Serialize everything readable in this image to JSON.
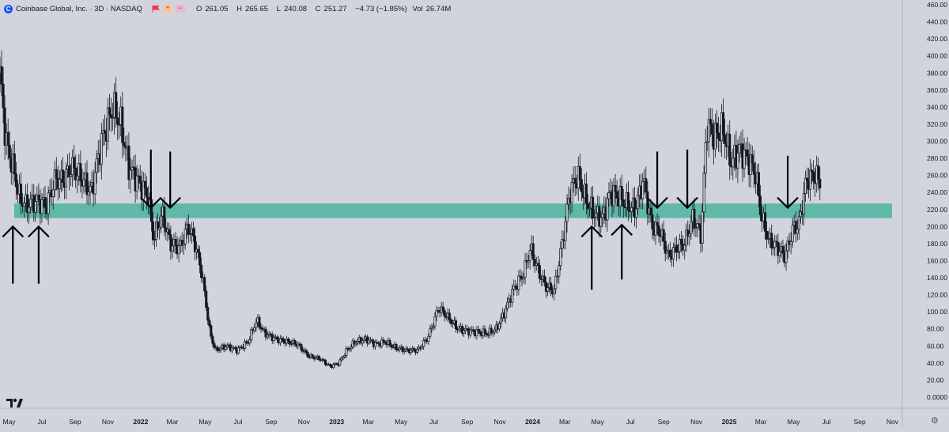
{
  "header": {
    "symbol_title": "Coinbase Global, Inc. · 3D · NASDAQ",
    "open_label": "O",
    "open": "261.05",
    "high_label": "H",
    "high": "265.65",
    "low_label": "L",
    "low": "240.08",
    "close_label": "C",
    "close": "251.27",
    "change": "−4.73 (−1.85%)",
    "vol_label": "Vol",
    "volume": "26.74M",
    "logo_letter": "C"
  },
  "colors": {
    "background": "#d1d4dc",
    "candle": "#131722",
    "support_band": "#5fb8a8",
    "arrows": "#000000",
    "axis_text": "#131722"
  },
  "chart_data": {
    "type": "candlestick",
    "y_axis": {
      "ylim": [
        0,
        460
      ],
      "ticks": [
        "460.00",
        "440.00",
        "420.00",
        "400.00",
        "380.00",
        "360.00",
        "340.00",
        "320.00",
        "300.00",
        "280.00",
        "260.00",
        "240.00",
        "220.00",
        "200.00",
        "180.00",
        "160.00",
        "140.00",
        "120.00",
        "100.00",
        "80.00",
        "60.00",
        "40.00",
        "20.00",
        "0.0000"
      ]
    },
    "x_axis": {
      "start": "2021-04-14",
      "end": "2025-11-18",
      "ticks": [
        {
          "label": "May",
          "date": "2021-05-01"
        },
        {
          "label": "Jul",
          "date": "2021-07-01"
        },
        {
          "label": "Sep",
          "date": "2021-09-01"
        },
        {
          "label": "Nov",
          "date": "2021-11-01"
        },
        {
          "label": "2022",
          "date": "2022-01-01"
        },
        {
          "label": "Mar",
          "date": "2022-03-01"
        },
        {
          "label": "May",
          "date": "2022-05-01"
        },
        {
          "label": "Jul",
          "date": "2022-07-01"
        },
        {
          "label": "Sep",
          "date": "2022-09-01"
        },
        {
          "label": "Nov",
          "date": "2022-11-01"
        },
        {
          "label": "2023",
          "date": "2023-01-01"
        },
        {
          "label": "Mar",
          "date": "2023-03-01"
        },
        {
          "label": "May",
          "date": "2023-05-01"
        },
        {
          "label": "Jul",
          "date": "2023-07-01"
        },
        {
          "label": "Sep",
          "date": "2023-09-01"
        },
        {
          "label": "Nov",
          "date": "2023-11-01"
        },
        {
          "label": "2024",
          "date": "2024-01-01"
        },
        {
          "label": "Mar",
          "date": "2024-03-01"
        },
        {
          "label": "May",
          "date": "2024-05-01"
        },
        {
          "label": "Jul",
          "date": "2024-07-01"
        },
        {
          "label": "Sep",
          "date": "2024-09-01"
        },
        {
          "label": "Nov",
          "date": "2024-11-01"
        },
        {
          "label": "2025",
          "date": "2025-01-01"
        },
        {
          "label": "Mar",
          "date": "2025-03-01"
        },
        {
          "label": "May",
          "date": "2025-05-01"
        },
        {
          "label": "Jul",
          "date": "2025-07-01"
        },
        {
          "label": "Sep",
          "date": "2025-09-01"
        },
        {
          "label": "Nov",
          "date": "2025-11-01"
        }
      ]
    },
    "support_zone": {
      "low": 210,
      "high": 227
    },
    "price_path": [
      [
        "2021-04-14",
        380
      ],
      [
        "2021-04-25",
        300
      ],
      [
        "2021-05-10",
        265
      ],
      [
        "2021-05-20",
        235
      ],
      [
        "2021-06-01",
        225
      ],
      [
        "2021-06-20",
        230
      ],
      [
        "2021-07-10",
        225
      ],
      [
        "2021-07-25",
        255
      ],
      [
        "2021-08-10",
        255
      ],
      [
        "2021-08-25",
        270
      ],
      [
        "2021-09-15",
        255
      ],
      [
        "2021-10-01",
        240
      ],
      [
        "2021-10-20",
        300
      ],
      [
        "2021-11-10",
        340
      ],
      [
        "2021-11-25",
        320
      ],
      [
        "2021-12-10",
        270
      ],
      [
        "2021-12-25",
        255
      ],
      [
        "2022-01-15",
        235
      ],
      [
        "2022-01-25",
        185
      ],
      [
        "2022-02-10",
        215
      ],
      [
        "2022-02-25",
        180
      ],
      [
        "2022-03-15",
        175
      ],
      [
        "2022-03-30",
        200
      ],
      [
        "2022-04-10",
        185
      ],
      [
        "2022-04-25",
        145
      ],
      [
        "2022-05-10",
        75
      ],
      [
        "2022-05-20",
        55
      ],
      [
        "2022-06-10",
        60
      ],
      [
        "2022-06-30",
        55
      ],
      [
        "2022-07-20",
        65
      ],
      [
        "2022-08-05",
        90
      ],
      [
        "2022-08-20",
        75
      ],
      [
        "2022-09-10",
        68
      ],
      [
        "2022-10-01",
        65
      ],
      [
        "2022-10-20",
        62
      ],
      [
        "2022-11-10",
        48
      ],
      [
        "2022-12-01",
        45
      ],
      [
        "2022-12-20",
        36
      ],
      [
        "2023-01-05",
        40
      ],
      [
        "2023-01-20",
        55
      ],
      [
        "2023-02-05",
        65
      ],
      [
        "2023-02-25",
        68
      ],
      [
        "2023-03-15",
        62
      ],
      [
        "2023-04-01",
        65
      ],
      [
        "2023-04-20",
        58
      ],
      [
        "2023-05-10",
        55
      ],
      [
        "2023-06-01",
        55
      ],
      [
        "2023-06-20",
        70
      ],
      [
        "2023-07-10",
        105
      ],
      [
        "2023-07-25",
        95
      ],
      [
        "2023-08-15",
        80
      ],
      [
        "2023-09-01",
        78
      ],
      [
        "2023-09-20",
        76
      ],
      [
        "2023-10-10",
        75
      ],
      [
        "2023-10-25",
        80
      ],
      [
        "2023-11-10",
        100
      ],
      [
        "2023-11-25",
        125
      ],
      [
        "2023-12-15",
        145
      ],
      [
        "2023-12-28",
        175
      ],
      [
        "2024-01-10",
        150
      ],
      [
        "2024-01-25",
        130
      ],
      [
        "2024-02-10",
        125
      ],
      [
        "2024-02-25",
        180
      ],
      [
        "2024-03-10",
        240
      ],
      [
        "2024-03-25",
        260
      ],
      [
        "2024-04-10",
        230
      ],
      [
        "2024-04-25",
        215
      ],
      [
        "2024-05-10",
        210
      ],
      [
        "2024-05-25",
        240
      ],
      [
        "2024-06-10",
        235
      ],
      [
        "2024-06-25",
        225
      ],
      [
        "2024-07-10",
        220
      ],
      [
        "2024-07-25",
        255
      ],
      [
        "2024-08-10",
        200
      ],
      [
        "2024-08-25",
        195
      ],
      [
        "2024-09-10",
        165
      ],
      [
        "2024-09-25",
        175
      ],
      [
        "2024-10-10",
        180
      ],
      [
        "2024-10-25",
        210
      ],
      [
        "2024-11-10",
        190
      ],
      [
        "2024-11-20",
        320
      ],
      [
        "2024-12-05",
        305
      ],
      [
        "2024-12-20",
        315
      ],
      [
        "2025-01-05",
        275
      ],
      [
        "2025-01-20",
        290
      ],
      [
        "2025-02-05",
        280
      ],
      [
        "2025-02-20",
        260
      ],
      [
        "2025-03-01",
        215
      ],
      [
        "2025-03-15",
        185
      ],
      [
        "2025-04-01",
        175
      ],
      [
        "2025-04-15",
        165
      ],
      [
        "2025-05-01",
        200
      ],
      [
        "2025-05-10",
        200
      ],
      [
        "2025-05-25",
        255
      ],
      [
        "2025-06-10",
        260
      ],
      [
        "2025-06-20",
        252
      ]
    ],
    "annotations": {
      "up_arrows": [
        {
          "date": "2021-05-08",
          "tip": 200,
          "tail": 133
        },
        {
          "date": "2021-06-25",
          "tip": 200,
          "tail": 133
        },
        {
          "date": "2024-04-20",
          "tip": 200,
          "tail": 126
        },
        {
          "date": "2024-06-15",
          "tip": 202,
          "tail": 138
        }
      ],
      "down_arrows": [
        {
          "date": "2022-01-20",
          "tail": 290,
          "tip": 222
        },
        {
          "date": "2022-02-25",
          "tail": 288,
          "tip": 222
        },
        {
          "date": "2024-08-20",
          "tail": 288,
          "tip": 222
        },
        {
          "date": "2024-10-15",
          "tail": 290,
          "tip": 222
        },
        {
          "date": "2025-04-20",
          "tail": 283,
          "tip": 222
        }
      ]
    }
  }
}
